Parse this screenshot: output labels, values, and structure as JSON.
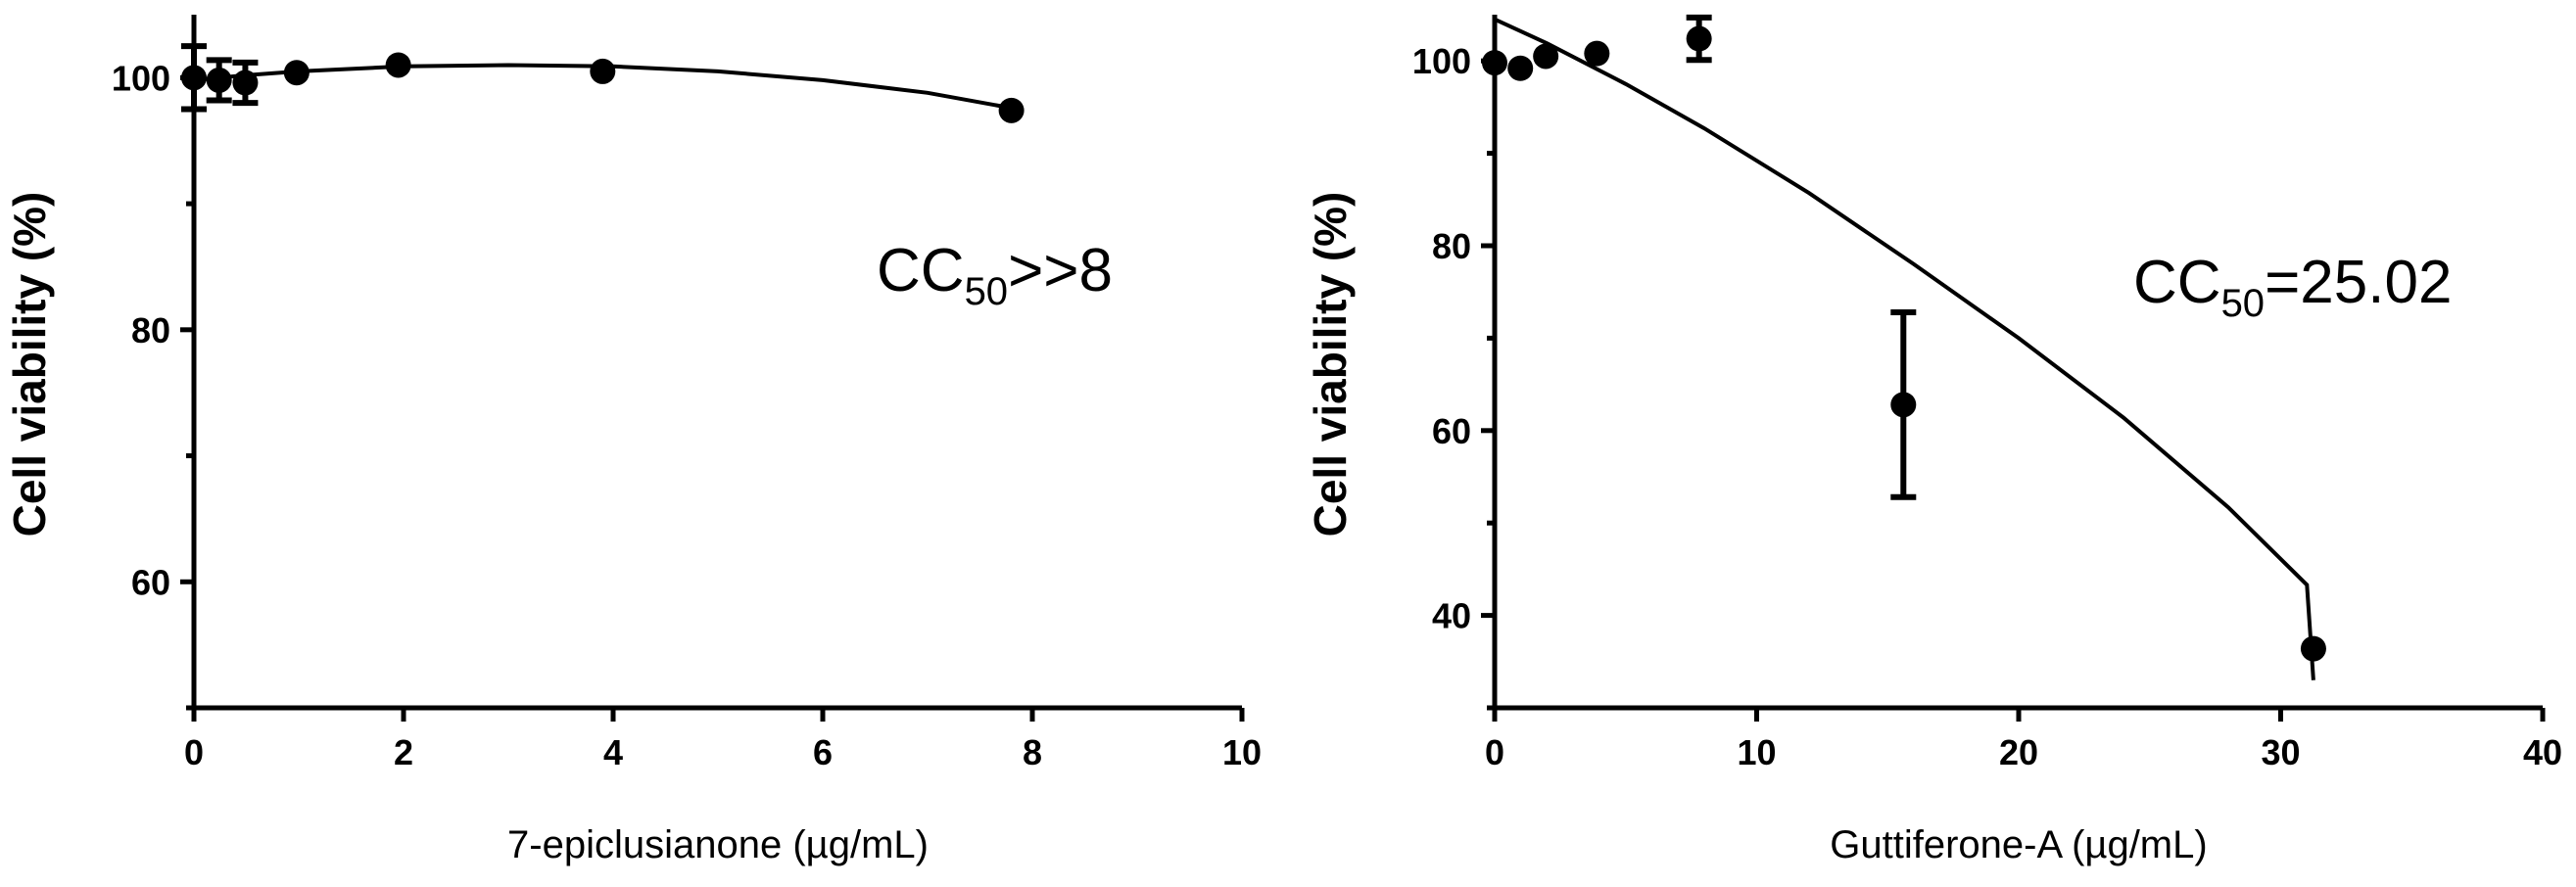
{
  "chart_data": [
    {
      "type": "scatter",
      "xlabel": "7-epiclusianone (µg/mL)",
      "ylabel": "Cell viability (%)",
      "xlim": [
        0,
        10
      ],
      "ylim": [
        50,
        105
      ],
      "x_ticks": [
        0,
        2,
        4,
        6,
        8,
        10
      ],
      "x_tick_labels": [
        "0",
        "2",
        "4",
        "6",
        "8",
        "10"
      ],
      "y_major_ticks": [
        60,
        80,
        100
      ],
      "y_tick_labels": [
        "60",
        "80",
        "100"
      ],
      "y_minor_ticks": [
        50,
        70,
        90
      ],
      "points": [
        {
          "x": 0,
          "y": 100,
          "err": 2.5
        },
        {
          "x": 0.24,
          "y": 99.8,
          "err": 1.6
        },
        {
          "x": 0.49,
          "y": 99.6,
          "err": 1.6
        },
        {
          "x": 0.98,
          "y": 100.4,
          "err": 0
        },
        {
          "x": 1.95,
          "y": 101,
          "err": 0
        },
        {
          "x": 3.9,
          "y": 100.5,
          "err": 0
        },
        {
          "x": 7.8,
          "y": 97.4,
          "err": 0
        }
      ],
      "fit_curve": [
        [
          0,
          99.8
        ],
        [
          0.5,
          100.2
        ],
        [
          1,
          100.5
        ],
        [
          2,
          100.9
        ],
        [
          3,
          101.0
        ],
        [
          4,
          100.9
        ],
        [
          5,
          100.5
        ],
        [
          6,
          99.8
        ],
        [
          7,
          98.8
        ],
        [
          7.8,
          97.6
        ]
      ],
      "annotation": {
        "prefix": "CC",
        "subscript": "50",
        "suffix": ">>8"
      }
    },
    {
      "type": "scatter",
      "xlabel": "Guttiferone-A (µg/mL)",
      "ylabel": "Cell viability (%)",
      "xlim": [
        0,
        40
      ],
      "ylim": [
        30,
        105
      ],
      "x_ticks": [
        0,
        10,
        20,
        30,
        40
      ],
      "x_tick_labels": [
        "0",
        "10",
        "20",
        "30",
        "40"
      ],
      "y_major_ticks": [
        40,
        60,
        80,
        100
      ],
      "y_tick_labels": [
        "40",
        "60",
        "80",
        "100"
      ],
      "y_minor_ticks": [
        30,
        50,
        70,
        90
      ],
      "points": [
        {
          "x": 0,
          "y": 99.8,
          "err": 0
        },
        {
          "x": 0.98,
          "y": 99.2,
          "err": 0
        },
        {
          "x": 1.95,
          "y": 100.5,
          "err": 0
        },
        {
          "x": 3.9,
          "y": 100.8,
          "err": 0
        },
        {
          "x": 7.8,
          "y": 102.4,
          "err": 2.3
        },
        {
          "x": 15.6,
          "y": 62.8,
          "err": 10
        },
        {
          "x": 31.25,
          "y": 36.4,
          "err": 0
        }
      ],
      "fit_curve": [
        [
          0,
          104.5
        ],
        [
          2,
          101.9
        ],
        [
          5,
          97.5
        ],
        [
          8,
          92.7
        ],
        [
          12,
          85.7
        ],
        [
          16,
          78.0
        ],
        [
          20,
          70.0
        ],
        [
          24,
          61.4
        ],
        [
          28,
          51.7
        ],
        [
          31,
          43.3
        ],
        [
          31.25,
          33
        ]
      ],
      "annotation": {
        "prefix": "CC",
        "subscript": "50",
        "suffix": "=25.02"
      }
    }
  ]
}
